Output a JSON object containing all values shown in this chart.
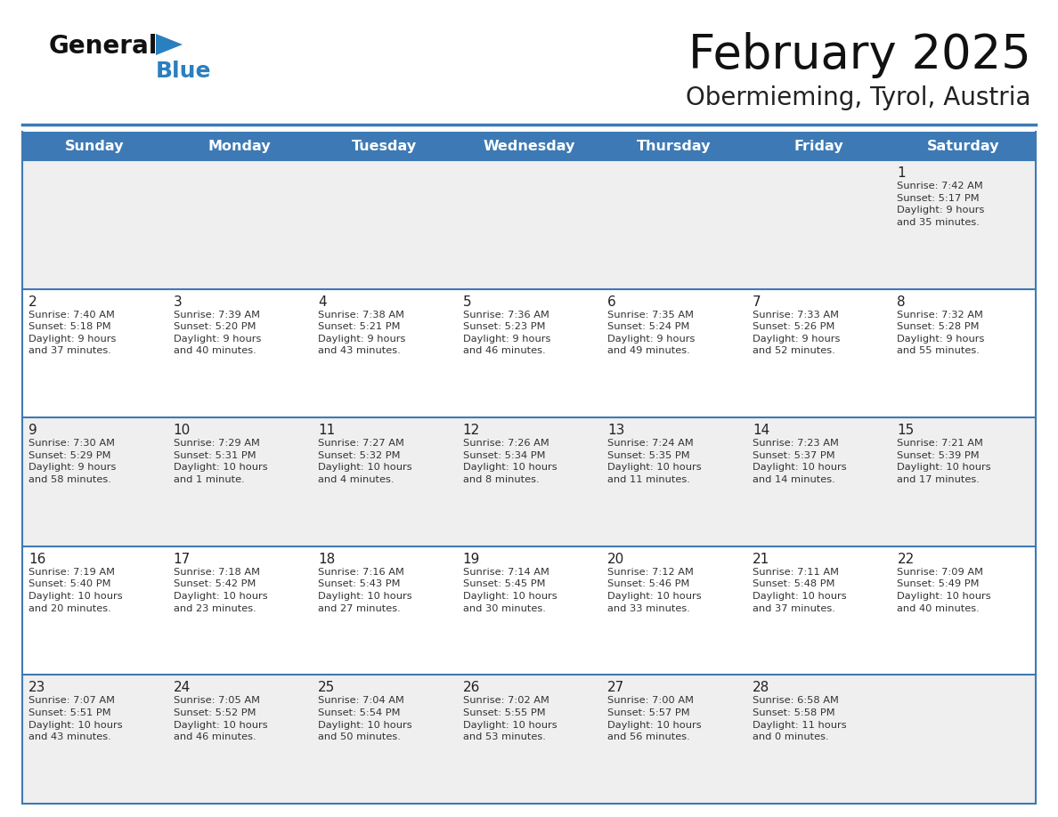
{
  "title": "February 2025",
  "subtitle": "Obermieming, Tyrol, Austria",
  "days_of_week": [
    "Sunday",
    "Monday",
    "Tuesday",
    "Wednesday",
    "Thursday",
    "Friday",
    "Saturday"
  ],
  "header_bg": "#3d7ab5",
  "header_text": "#ffffff",
  "row_bg_light": "#efefef",
  "row_bg_white": "#ffffff",
  "cell_text_color": "#333333",
  "day_num_color": "#222222",
  "border_color": "#3d7ab5",
  "title_color": "#111111",
  "subtitle_color": "#222222",
  "logo_general_color": "#111111",
  "logo_blue_color": "#2a7fc0",
  "calendar_data": [
    [
      {
        "day": null,
        "info": null
      },
      {
        "day": null,
        "info": null
      },
      {
        "day": null,
        "info": null
      },
      {
        "day": null,
        "info": null
      },
      {
        "day": null,
        "info": null
      },
      {
        "day": null,
        "info": null
      },
      {
        "day": 1,
        "info": "Sunrise: 7:42 AM\nSunset: 5:17 PM\nDaylight: 9 hours\nand 35 minutes."
      }
    ],
    [
      {
        "day": 2,
        "info": "Sunrise: 7:40 AM\nSunset: 5:18 PM\nDaylight: 9 hours\nand 37 minutes."
      },
      {
        "day": 3,
        "info": "Sunrise: 7:39 AM\nSunset: 5:20 PM\nDaylight: 9 hours\nand 40 minutes."
      },
      {
        "day": 4,
        "info": "Sunrise: 7:38 AM\nSunset: 5:21 PM\nDaylight: 9 hours\nand 43 minutes."
      },
      {
        "day": 5,
        "info": "Sunrise: 7:36 AM\nSunset: 5:23 PM\nDaylight: 9 hours\nand 46 minutes."
      },
      {
        "day": 6,
        "info": "Sunrise: 7:35 AM\nSunset: 5:24 PM\nDaylight: 9 hours\nand 49 minutes."
      },
      {
        "day": 7,
        "info": "Sunrise: 7:33 AM\nSunset: 5:26 PM\nDaylight: 9 hours\nand 52 minutes."
      },
      {
        "day": 8,
        "info": "Sunrise: 7:32 AM\nSunset: 5:28 PM\nDaylight: 9 hours\nand 55 minutes."
      }
    ],
    [
      {
        "day": 9,
        "info": "Sunrise: 7:30 AM\nSunset: 5:29 PM\nDaylight: 9 hours\nand 58 minutes."
      },
      {
        "day": 10,
        "info": "Sunrise: 7:29 AM\nSunset: 5:31 PM\nDaylight: 10 hours\nand 1 minute."
      },
      {
        "day": 11,
        "info": "Sunrise: 7:27 AM\nSunset: 5:32 PM\nDaylight: 10 hours\nand 4 minutes."
      },
      {
        "day": 12,
        "info": "Sunrise: 7:26 AM\nSunset: 5:34 PM\nDaylight: 10 hours\nand 8 minutes."
      },
      {
        "day": 13,
        "info": "Sunrise: 7:24 AM\nSunset: 5:35 PM\nDaylight: 10 hours\nand 11 minutes."
      },
      {
        "day": 14,
        "info": "Sunrise: 7:23 AM\nSunset: 5:37 PM\nDaylight: 10 hours\nand 14 minutes."
      },
      {
        "day": 15,
        "info": "Sunrise: 7:21 AM\nSunset: 5:39 PM\nDaylight: 10 hours\nand 17 minutes."
      }
    ],
    [
      {
        "day": 16,
        "info": "Sunrise: 7:19 AM\nSunset: 5:40 PM\nDaylight: 10 hours\nand 20 minutes."
      },
      {
        "day": 17,
        "info": "Sunrise: 7:18 AM\nSunset: 5:42 PM\nDaylight: 10 hours\nand 23 minutes."
      },
      {
        "day": 18,
        "info": "Sunrise: 7:16 AM\nSunset: 5:43 PM\nDaylight: 10 hours\nand 27 minutes."
      },
      {
        "day": 19,
        "info": "Sunrise: 7:14 AM\nSunset: 5:45 PM\nDaylight: 10 hours\nand 30 minutes."
      },
      {
        "day": 20,
        "info": "Sunrise: 7:12 AM\nSunset: 5:46 PM\nDaylight: 10 hours\nand 33 minutes."
      },
      {
        "day": 21,
        "info": "Sunrise: 7:11 AM\nSunset: 5:48 PM\nDaylight: 10 hours\nand 37 minutes."
      },
      {
        "day": 22,
        "info": "Sunrise: 7:09 AM\nSunset: 5:49 PM\nDaylight: 10 hours\nand 40 minutes."
      }
    ],
    [
      {
        "day": 23,
        "info": "Sunrise: 7:07 AM\nSunset: 5:51 PM\nDaylight: 10 hours\nand 43 minutes."
      },
      {
        "day": 24,
        "info": "Sunrise: 7:05 AM\nSunset: 5:52 PM\nDaylight: 10 hours\nand 46 minutes."
      },
      {
        "day": 25,
        "info": "Sunrise: 7:04 AM\nSunset: 5:54 PM\nDaylight: 10 hours\nand 50 minutes."
      },
      {
        "day": 26,
        "info": "Sunrise: 7:02 AM\nSunset: 5:55 PM\nDaylight: 10 hours\nand 53 minutes."
      },
      {
        "day": 27,
        "info": "Sunrise: 7:00 AM\nSunset: 5:57 PM\nDaylight: 10 hours\nand 56 minutes."
      },
      {
        "day": 28,
        "info": "Sunrise: 6:58 AM\nSunset: 5:58 PM\nDaylight: 11 hours\nand 0 minutes."
      },
      {
        "day": null,
        "info": null
      }
    ]
  ]
}
